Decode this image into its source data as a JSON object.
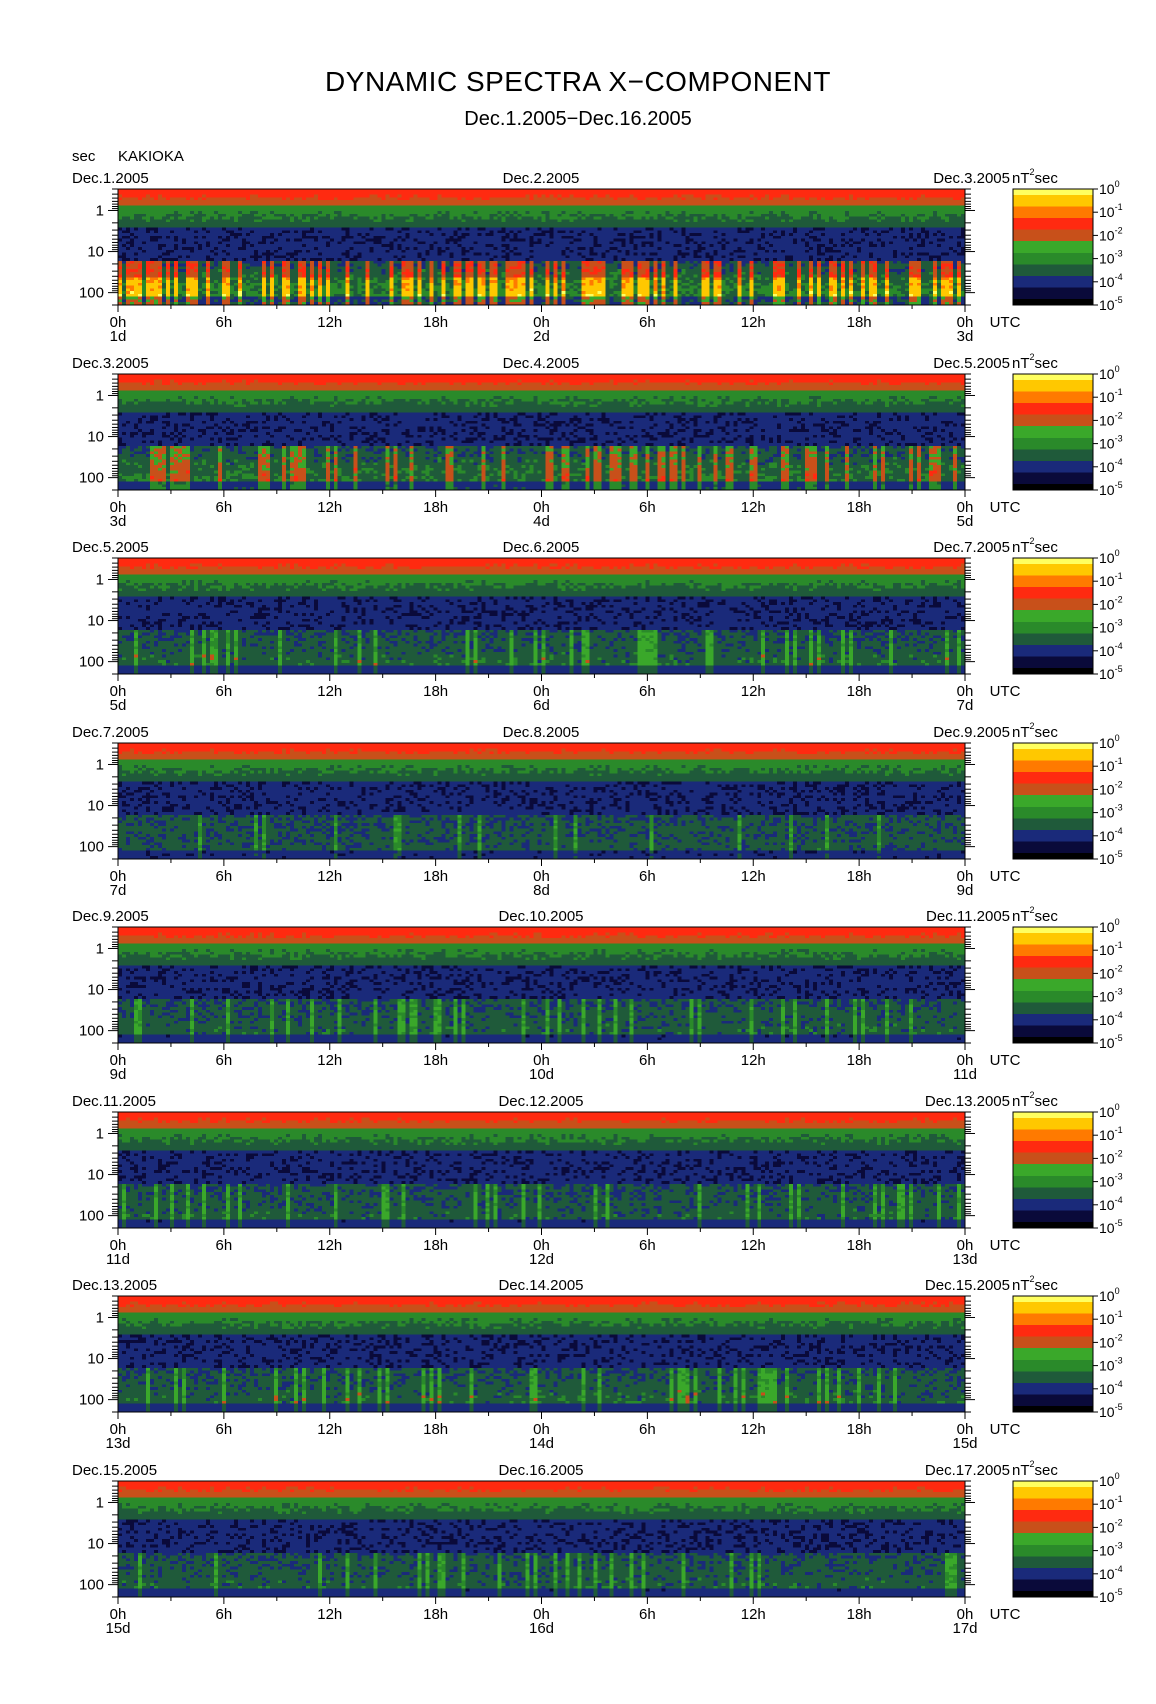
{
  "title": "DYNAMIC SPECTRA X−COMPONENT",
  "subtitle": "Dec.1.2005−Dec.16.2005",
  "y_unit_label": "sec",
  "station": "KAKIOKA",
  "time_zone_label": "UTC",
  "colorbar_unit": "nT",
  "colorbar_unit_sup": "2",
  "colorbar_unit_suffix": "sec",
  "colormap": [
    "#000000",
    "#0a0a3a",
    "#1a2a7a",
    "#1f5a3a",
    "#2a8a2a",
    "#3aa82a",
    "#c8501a",
    "#ff2a10",
    "#ff7a00",
    "#ffc800",
    "#ffff60"
  ],
  "chart_data": {
    "type": "heatmap",
    "description_free": true,
    "y_axis": {
      "scale": "log",
      "ylim_sec": [
        200,
        0.3
      ],
      "ticks": [
        1,
        10,
        100
      ],
      "tick_labels": [
        "1",
        "10",
        "100"
      ]
    },
    "x_ticks": [
      "0h",
      "6h",
      "12h",
      "18h",
      "0h",
      "6h",
      "12h",
      "18h",
      "0h"
    ],
    "color_scale": {
      "scale": "log",
      "range": [
        1e-05,
        1
      ],
      "tick_bases": [
        "10",
        "10",
        "10",
        "10",
        "10",
        "10"
      ],
      "tick_exps": [
        "0",
        "-1",
        "-2",
        "-3",
        "-4",
        "-5"
      ]
    },
    "panels": [
      {
        "date_left": "Dec.1.2005",
        "date_mid": "Dec.2.2005",
        "date_right": "Dec.3.2005",
        "day_left": "1d",
        "day_mid": "2d",
        "day_right": "3d",
        "activity": 1.0
      },
      {
        "date_left": "Dec.3.2005",
        "date_mid": "Dec.4.2005",
        "date_right": "Dec.5.2005",
        "day_left": "3d",
        "day_mid": "4d",
        "day_right": "5d",
        "activity": 0.7
      },
      {
        "date_left": "Dec.5.2005",
        "date_mid": "Dec.6.2005",
        "date_right": "Dec.7.2005",
        "day_left": "5d",
        "day_mid": "6d",
        "day_right": "7d",
        "activity": 0.4
      },
      {
        "date_left": "Dec.7.2005",
        "date_mid": "Dec.8.2005",
        "date_right": "Dec.9.2005",
        "day_left": "7d",
        "day_mid": "8d",
        "day_right": "9d",
        "activity": 0.25
      },
      {
        "date_left": "Dec.9.2005",
        "date_mid": "Dec.10.2005",
        "date_right": "Dec.11.2005",
        "day_left": "9d",
        "day_mid": "10d",
        "day_right": "11d",
        "activity": 0.35
      },
      {
        "date_left": "Dec.11.2005",
        "date_mid": "Dec.12.2005",
        "date_right": "Dec.13.2005",
        "day_left": "11d",
        "day_mid": "12d",
        "day_right": "13d",
        "activity": 0.35
      },
      {
        "date_left": "Dec.13.2005",
        "date_mid": "Dec.14.2005",
        "date_right": "Dec.15.2005",
        "day_left": "13d",
        "day_mid": "14d",
        "day_right": "15d",
        "activity": 0.4
      },
      {
        "date_left": "Dec.15.2005",
        "date_mid": "Dec.16.2005",
        "date_right": "Dec.17.2005",
        "day_left": "15d",
        "day_mid": "16d",
        "day_right": "17d",
        "activity": 0.35
      }
    ]
  }
}
